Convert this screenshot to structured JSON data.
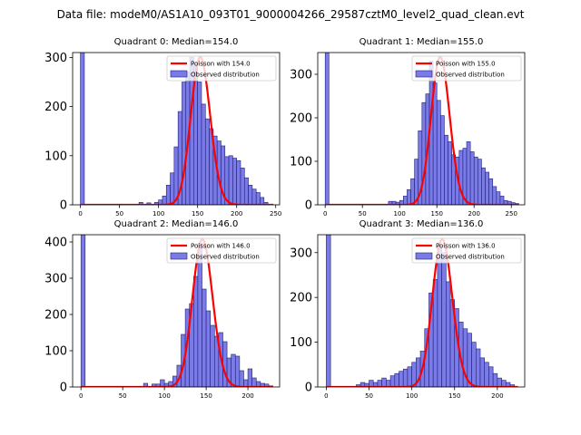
{
  "suptitle": "Data file: modeM0/AS1A10_093T01_9000004266_29587cztM0_level2_quad_clean.evt",
  "colors": {
    "bar_fill": "#7b7be8",
    "bar_edge": "#1f1f7a",
    "poisson_line": "#ff0000"
  },
  "chart_data": [
    {
      "type": "bar",
      "title": "Quadrant 0: Median=154.0",
      "median": 154.0,
      "poisson_label": "Poisson with 154.0",
      "observed_label": "Observed distribution",
      "xlim": [
        -10,
        255
      ],
      "ylim": [
        0,
        310
      ],
      "xticks": [
        0,
        50,
        100,
        150,
        200,
        250
      ],
      "yticks": [
        0,
        100,
        200,
        300
      ],
      "bin_width": 5,
      "bin_starts": [
        0,
        75,
        85,
        95,
        100,
        105,
        110,
        115,
        120,
        125,
        130,
        135,
        140,
        145,
        150,
        155,
        160,
        165,
        170,
        175,
        180,
        185,
        190,
        195,
        200,
        205,
        210,
        215,
        220,
        225,
        230,
        235
      ],
      "values": [
        310,
        5,
        4,
        5,
        10,
        18,
        40,
        65,
        118,
        190,
        250,
        270,
        300,
        285,
        250,
        205,
        175,
        155,
        140,
        130,
        120,
        98,
        100,
        95,
        90,
        75,
        55,
        40,
        32,
        25,
        15,
        5
      ]
    },
    {
      "type": "bar",
      "title": "Quadrant 1: Median=155.0",
      "median": 155.0,
      "poisson_label": "Poisson with 155.0",
      "observed_label": "Observed distribution",
      "xlim": [
        -10,
        268
      ],
      "ylim": [
        0,
        350
      ],
      "xticks": [
        0,
        50,
        100,
        150,
        200,
        250
      ],
      "yticks": [
        0,
        100,
        200,
        300
      ],
      "bin_width": 5,
      "bin_starts": [
        0,
        85,
        90,
        95,
        100,
        105,
        110,
        115,
        120,
        125,
        130,
        135,
        140,
        145,
        150,
        155,
        160,
        165,
        170,
        175,
        180,
        185,
        190,
        195,
        200,
        205,
        210,
        215,
        220,
        225,
        230,
        235,
        240,
        245,
        250,
        255
      ],
      "values": [
        350,
        8,
        8,
        6,
        10,
        20,
        35,
        60,
        105,
        170,
        235,
        255,
        330,
        280,
        240,
        205,
        160,
        145,
        115,
        110,
        125,
        130,
        145,
        122,
        110,
        105,
        85,
        75,
        60,
        42,
        30,
        20,
        10,
        8,
        5,
        3
      ]
    },
    {
      "type": "bar",
      "title": "Quadrant 2: Median=146.0",
      "median": 146.0,
      "poisson_label": "Poisson with 146.0",
      "observed_label": "Observed distribution",
      "xlim": [
        -10,
        238
      ],
      "ylim": [
        0,
        420
      ],
      "xticks": [
        0,
        50,
        100,
        150,
        200
      ],
      "yticks": [
        0,
        100,
        200,
        300,
        400
      ],
      "bin_width": 5,
      "bin_starts": [
        0,
        75,
        85,
        90,
        95,
        100,
        105,
        110,
        115,
        120,
        125,
        130,
        135,
        140,
        145,
        150,
        155,
        160,
        165,
        170,
        175,
        180,
        185,
        190,
        195,
        200,
        205,
        210,
        215,
        220,
        225
      ],
      "values": [
        420,
        10,
        8,
        8,
        20,
        10,
        15,
        30,
        60,
        145,
        215,
        230,
        305,
        395,
        270,
        210,
        170,
        140,
        150,
        125,
        80,
        90,
        85,
        45,
        20,
        50,
        25,
        15,
        10,
        8,
        3
      ]
    },
    {
      "type": "bar",
      "title": "Quadrant 3: Median=136.0",
      "median": 136.0,
      "poisson_label": "Poisson with 136.0",
      "observed_label": "Observed distribution",
      "xlim": [
        -10,
        232
      ],
      "ylim": [
        0,
        340
      ],
      "xticks": [
        0,
        50,
        100,
        150,
        200
      ],
      "yticks": [
        0,
        100,
        200,
        300
      ],
      "bin_width": 5,
      "bin_starts": [
        0,
        35,
        40,
        45,
        50,
        55,
        60,
        65,
        70,
        75,
        80,
        85,
        90,
        95,
        100,
        105,
        110,
        115,
        120,
        125,
        130,
        135,
        140,
        145,
        150,
        155,
        160,
        165,
        170,
        175,
        180,
        185,
        190,
        195,
        200,
        205,
        210,
        215
      ],
      "values": [
        340,
        5,
        10,
        8,
        15,
        10,
        15,
        20,
        15,
        25,
        30,
        35,
        40,
        45,
        55,
        65,
        80,
        130,
        210,
        240,
        315,
        300,
        235,
        195,
        175,
        145,
        130,
        120,
        100,
        85,
        65,
        55,
        45,
        30,
        20,
        15,
        10,
        5
      ]
    }
  ]
}
